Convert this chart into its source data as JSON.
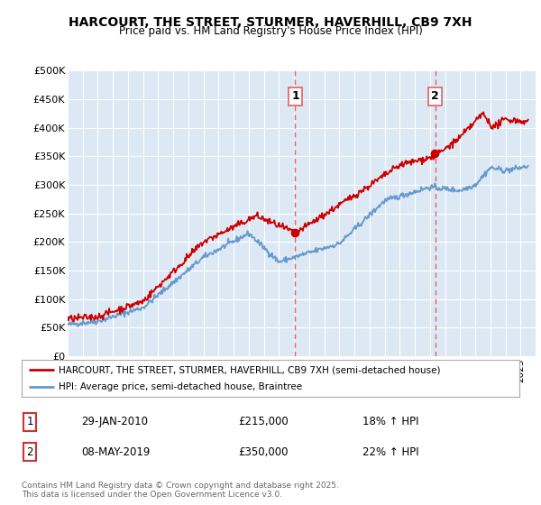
{
  "title": "HARCOURT, THE STREET, STURMER, HAVERHILL, CB9 7XH",
  "subtitle": "Price paid vs. HM Land Registry's House Price Index (HPI)",
  "bg_color": "#dce9f5",
  "red_color": "#cc0000",
  "blue_color": "#6699cc",
  "dashed_color": "#e06060",
  "ylim_min": 0,
  "ylim_max": 500000,
  "yticks": [
    0,
    50000,
    100000,
    150000,
    200000,
    250000,
    300000,
    350000,
    400000,
    450000,
    500000
  ],
  "ytick_labels": [
    "£0",
    "£50K",
    "£100K",
    "£150K",
    "£200K",
    "£250K",
    "£300K",
    "£350K",
    "£400K",
    "£450K",
    "£500K"
  ],
  "marker1_year": 2010.08,
  "marker2_year": 2019.36,
  "marker1_label": "1",
  "marker2_label": "2",
  "legend_line1": "HARCOURT, THE STREET, STURMER, HAVERHILL, CB9 7XH (semi-detached house)",
  "legend_line2": "HPI: Average price, semi-detached house, Braintree",
  "table_row1": [
    "1",
    "29-JAN-2010",
    "£215,000",
    "18% ↑ HPI"
  ],
  "table_row2": [
    "2",
    "08-MAY-2019",
    "£350,000",
    "22% ↑ HPI"
  ],
  "footer": "Contains HM Land Registry data © Crown copyright and database right 2025.\nThis data is licensed under the Open Government Licence v3.0.",
  "xmin": 1995,
  "xmax": 2026
}
